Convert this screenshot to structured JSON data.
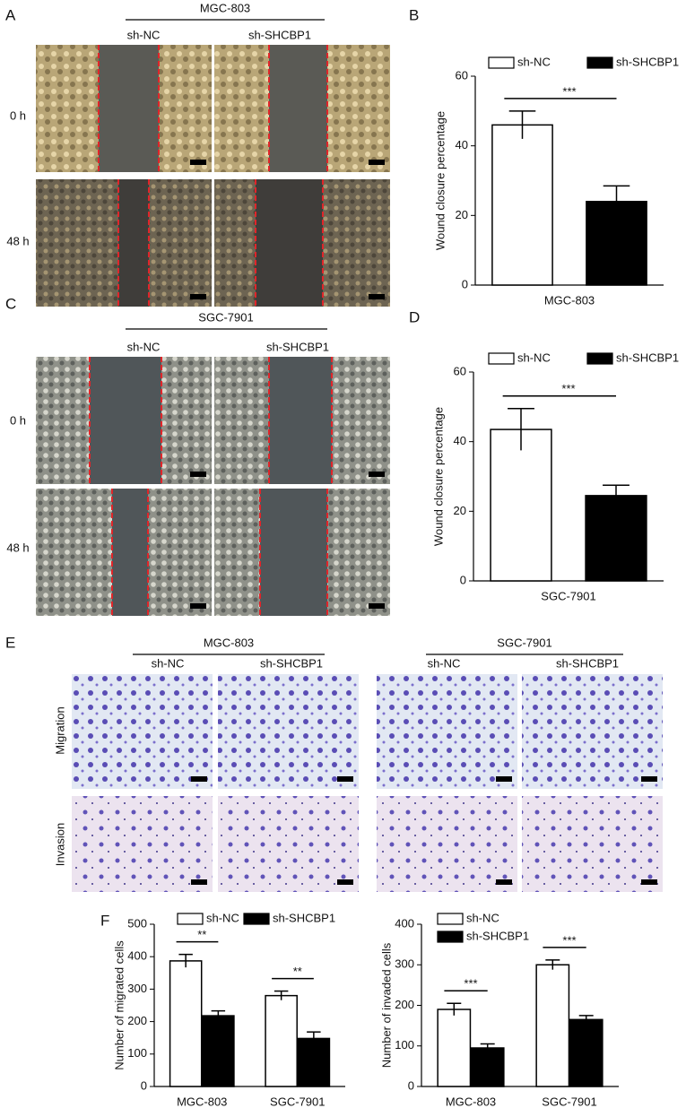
{
  "panel_letters": [
    "A",
    "B",
    "C",
    "D",
    "E",
    "F"
  ],
  "wound_panels": [
    {
      "cell_line": "MGC-803",
      "groups": [
        "sh-NC",
        "sh-SHCBP1"
      ],
      "rows": [
        "0 h",
        "48 h"
      ]
    },
    {
      "cell_line": "SGC-7901",
      "groups": [
        "sh-NC",
        "sh-SHCBP1"
      ],
      "rows": [
        "0 h",
        "48 h"
      ]
    }
  ],
  "transwell_panel": {
    "blocks": [
      {
        "cell_line": "MGC-803",
        "groups": [
          "sh-NC",
          "sh-SHCBP1"
        ]
      },
      {
        "cell_line": "SGC-7901",
        "groups": [
          "sh-NC",
          "sh-SHCBP1"
        ]
      }
    ],
    "rows": [
      "Migration",
      "Invasion"
    ]
  },
  "chart_data": [
    {
      "type": "bar",
      "y_label": "Wound closure percentage",
      "categories": [
        "MGC-803"
      ],
      "series": [
        {
          "name": "sh-NC",
          "color": "#ffffff",
          "values": [
            46
          ],
          "errors": [
            4
          ]
        },
        {
          "name": "sh-SHCBP1",
          "color": "#000000",
          "values": [
            24
          ],
          "errors": [
            4.5
          ]
        }
      ],
      "significance": [
        "***"
      ],
      "ylim": [
        0,
        60
      ],
      "yticks": [
        0,
        20,
        40,
        60
      ]
    },
    {
      "type": "bar",
      "y_label": "Wound closure percentage",
      "categories": [
        "SGC-7901"
      ],
      "series": [
        {
          "name": "sh-NC",
          "color": "#ffffff",
          "values": [
            43.5
          ],
          "errors": [
            6
          ]
        },
        {
          "name": "sh-SHCBP1",
          "color": "#000000",
          "values": [
            24.5
          ],
          "errors": [
            3
          ]
        }
      ],
      "significance": [
        "***"
      ],
      "ylim": [
        0,
        60
      ],
      "yticks": [
        0,
        20,
        40,
        60
      ]
    },
    {
      "type": "bar",
      "y_label": "Number of migrated cells",
      "categories": [
        "MGC-803",
        "SGC-7901"
      ],
      "series": [
        {
          "name": "sh-NC",
          "color": "#ffffff",
          "values": [
            387,
            280
          ],
          "errors": [
            20,
            14
          ]
        },
        {
          "name": "sh-SHCBP1",
          "color": "#000000",
          "values": [
            218,
            148
          ],
          "errors": [
            15,
            20
          ]
        }
      ],
      "significance": [
        "**",
        "**"
      ],
      "ylim": [
        0,
        500
      ],
      "yticks": [
        0,
        100,
        200,
        300,
        400,
        500
      ]
    },
    {
      "type": "bar",
      "y_label": "Number of invaded cells",
      "categories": [
        "MGC-803",
        "SGC-7901"
      ],
      "series": [
        {
          "name": "sh-NC",
          "color": "#ffffff",
          "values": [
            190,
            300
          ],
          "errors": [
            15,
            12
          ]
        },
        {
          "name": "sh-SHCBP1",
          "color": "#000000",
          "values": [
            95,
            165
          ],
          "errors": [
            10,
            10
          ]
        }
      ],
      "significance": [
        "***",
        "***"
      ],
      "ylim": [
        0,
        400
      ],
      "yticks": [
        0,
        100,
        200,
        300,
        400
      ]
    }
  ]
}
